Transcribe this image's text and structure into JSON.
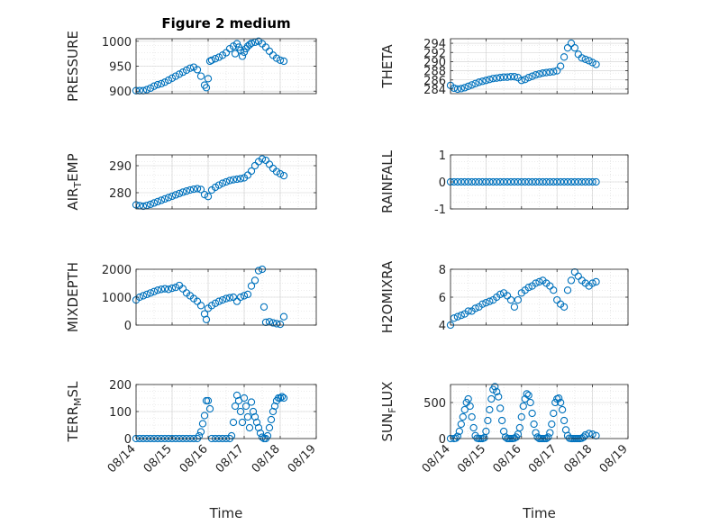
{
  "figure": {
    "title": "Figure 2 medium",
    "marker_color": "#0072BD",
    "x_tick_labels": [
      "08/14",
      "08/15",
      "08/16",
      "08/17",
      "08/18",
      "08/19"
    ]
  },
  "chart_data": [
    {
      "type": "scatter",
      "title": "Figure 2 medium",
      "ylabel": "PRESSURE",
      "xlabel": "",
      "xlim": [
        0,
        5
      ],
      "ylim": [
        895,
        1005
      ],
      "yticks": [
        900,
        950,
        1000
      ],
      "grid": true,
      "x_ticks_shown": false,
      "x": [
        0.0,
        0.1,
        0.2,
        0.3,
        0.4,
        0.5,
        0.6,
        0.7,
        0.8,
        0.9,
        1.0,
        1.1,
        1.2,
        1.3,
        1.4,
        1.5,
        1.6,
        1.7,
        1.8,
        1.9,
        1.95,
        2.0,
        2.05,
        2.1,
        2.2,
        2.3,
        2.4,
        2.5,
        2.6,
        2.7,
        2.75,
        2.8,
        2.85,
        2.9,
        2.95,
        3.0,
        3.05,
        3.1,
        3.15,
        3.2,
        3.3,
        3.4,
        3.5,
        3.6,
        3.7,
        3.8,
        3.9,
        4.0,
        4.1
      ],
      "y": [
        901,
        901,
        901,
        903,
        906,
        910,
        913,
        915,
        918,
        922,
        926,
        930,
        934,
        938,
        942,
        946,
        948,
        943,
        930,
        912,
        907,
        925,
        960,
        962,
        965,
        968,
        972,
        977,
        985,
        990,
        975,
        995,
        988,
        982,
        970,
        978,
        985,
        990,
        993,
        996,
        998,
        1000,
        995,
        988,
        980,
        972,
        966,
        962,
        960
      ]
    },
    {
      "type": "scatter",
      "title": "",
      "ylabel": "THETA",
      "xlabel": "",
      "xlim": [
        0,
        5
      ],
      "ylim": [
        283,
        295
      ],
      "yticks": [
        284,
        286,
        288,
        290,
        292,
        294
      ],
      "grid": true,
      "x_ticks_shown": false,
      "x": [
        0.0,
        0.1,
        0.2,
        0.3,
        0.4,
        0.5,
        0.6,
        0.7,
        0.8,
        0.9,
        1.0,
        1.1,
        1.2,
        1.3,
        1.4,
        1.5,
        1.6,
        1.7,
        1.8,
        1.9,
        2.0,
        2.1,
        2.2,
        2.3,
        2.4,
        2.5,
        2.6,
        2.7,
        2.8,
        2.9,
        3.0,
        3.1,
        3.2,
        3.3,
        3.4,
        3.5,
        3.6,
        3.7,
        3.8,
        3.9,
        4.0,
        4.1
      ],
      "y": [
        284.8,
        284.2,
        284.0,
        284.1,
        284.3,
        284.6,
        284.9,
        285.2,
        285.5,
        285.7,
        285.9,
        286.1,
        286.3,
        286.4,
        286.5,
        286.6,
        286.6,
        286.7,
        286.7,
        286.5,
        285.9,
        286.1,
        286.5,
        286.8,
        287.1,
        287.3,
        287.5,
        287.6,
        287.7,
        287.8,
        288.0,
        289.0,
        291.0,
        293.0,
        294.0,
        293.0,
        291.6,
        290.8,
        290.5,
        290.2,
        289.8,
        289.4
      ]
    },
    {
      "type": "scatter",
      "title": "",
      "ylabel": "AIR_TEMP",
      "xlabel": "",
      "xlim": [
        0,
        5
      ],
      "ylim": [
        274,
        294
      ],
      "yticks": [
        280,
        290
      ],
      "grid": true,
      "x_ticks_shown": false,
      "x": [
        0.0,
        0.1,
        0.2,
        0.3,
        0.4,
        0.5,
        0.6,
        0.7,
        0.8,
        0.9,
        1.0,
        1.1,
        1.2,
        1.3,
        1.4,
        1.5,
        1.6,
        1.7,
        1.8,
        1.9,
        2.0,
        2.1,
        2.2,
        2.3,
        2.4,
        2.5,
        2.6,
        2.7,
        2.8,
        2.9,
        3.0,
        3.1,
        3.2,
        3.3,
        3.4,
        3.5,
        3.6,
        3.7,
        3.8,
        3.9,
        4.0,
        4.1
      ],
      "y": [
        275.5,
        275.2,
        275.0,
        275.3,
        275.7,
        276.2,
        276.7,
        277.2,
        277.7,
        278.2,
        278.7,
        279.2,
        279.7,
        280.2,
        280.6,
        281.0,
        281.3,
        281.5,
        281.2,
        279.3,
        278.6,
        281.0,
        282.0,
        282.8,
        283.5,
        284.0,
        284.5,
        284.8,
        285.0,
        285.2,
        285.5,
        286.5,
        288.0,
        290.0,
        291.5,
        292.5,
        292.0,
        290.5,
        289.0,
        287.8,
        287.0,
        286.3
      ]
    },
    {
      "type": "scatter",
      "title": "",
      "ylabel": "RAINFALL",
      "xlabel": "",
      "xlim": [
        0,
        5
      ],
      "ylim": [
        -1,
        1
      ],
      "yticks": [
        -1,
        0,
        1
      ],
      "grid": true,
      "x_ticks_shown": false,
      "x": [
        0.0,
        0.1,
        0.2,
        0.3,
        0.4,
        0.5,
        0.6,
        0.7,
        0.8,
        0.9,
        1.0,
        1.1,
        1.2,
        1.3,
        1.4,
        1.5,
        1.6,
        1.7,
        1.8,
        1.9,
        2.0,
        2.1,
        2.2,
        2.3,
        2.4,
        2.5,
        2.6,
        2.7,
        2.8,
        2.9,
        3.0,
        3.1,
        3.2,
        3.3,
        3.4,
        3.5,
        3.6,
        3.7,
        3.8,
        3.9,
        4.0,
        4.1
      ],
      "y": [
        0,
        0,
        0,
        0,
        0,
        0,
        0,
        0,
        0,
        0,
        0,
        0,
        0,
        0,
        0,
        0,
        0,
        0,
        0,
        0,
        0,
        0,
        0,
        0,
        0,
        0,
        0,
        0,
        0,
        0,
        0,
        0,
        0,
        0,
        0,
        0,
        0,
        0,
        0,
        0,
        0,
        0
      ]
    },
    {
      "type": "scatter",
      "title": "",
      "ylabel": "MIXDEPTH",
      "xlabel": "",
      "xlim": [
        0,
        5
      ],
      "ylim": [
        0,
        2000
      ],
      "yticks": [
        0,
        1000,
        2000
      ],
      "grid": true,
      "x_ticks_shown": false,
      "x": [
        0.0,
        0.1,
        0.2,
        0.3,
        0.4,
        0.5,
        0.6,
        0.7,
        0.8,
        0.9,
        1.0,
        1.1,
        1.2,
        1.3,
        1.4,
        1.5,
        1.6,
        1.7,
        1.8,
        1.9,
        1.95,
        2.0,
        2.1,
        2.2,
        2.3,
        2.4,
        2.5,
        2.6,
        2.7,
        2.8,
        2.9,
        3.0,
        3.1,
        3.2,
        3.3,
        3.4,
        3.5,
        3.55,
        3.6,
        3.7,
        3.8,
        3.9,
        4.0,
        4.1
      ],
      "y": [
        900,
        1000,
        1050,
        1100,
        1150,
        1200,
        1250,
        1280,
        1300,
        1280,
        1320,
        1350,
        1420,
        1300,
        1150,
        1050,
        950,
        850,
        700,
        400,
        200,
        600,
        700,
        780,
        850,
        900,
        950,
        980,
        1000,
        850,
        1000,
        1050,
        1100,
        1400,
        1600,
        1950,
        2000,
        650,
        100,
        120,
        80,
        50,
        30,
        300
      ]
    },
    {
      "type": "scatter",
      "title": "",
      "ylabel": "H2OMIXRA",
      "xlabel": "",
      "xlim": [
        0,
        5
      ],
      "ylim": [
        4,
        8
      ],
      "yticks": [
        4,
        6,
        8
      ],
      "grid": true,
      "x_ticks_shown": false,
      "x": [
        0.0,
        0.1,
        0.2,
        0.3,
        0.4,
        0.5,
        0.6,
        0.7,
        0.8,
        0.9,
        1.0,
        1.1,
        1.2,
        1.3,
        1.4,
        1.5,
        1.6,
        1.7,
        1.8,
        1.9,
        2.0,
        2.1,
        2.2,
        2.3,
        2.4,
        2.5,
        2.6,
        2.7,
        2.8,
        2.9,
        3.0,
        3.1,
        3.2,
        3.3,
        3.4,
        3.5,
        3.6,
        3.7,
        3.8,
        3.9,
        4.0,
        4.1
      ],
      "y": [
        4.0,
        4.5,
        4.6,
        4.7,
        4.8,
        5.0,
        5.0,
        5.2,
        5.3,
        5.5,
        5.6,
        5.7,
        5.8,
        6.0,
        6.2,
        6.3,
        6.1,
        5.8,
        5.3,
        5.8,
        6.3,
        6.5,
        6.7,
        6.8,
        7.0,
        7.1,
        7.2,
        7.0,
        6.8,
        6.5,
        5.8,
        5.5,
        5.3,
        6.5,
        7.2,
        7.8,
        7.5,
        7.2,
        7.0,
        6.8,
        7.0,
        7.1
      ]
    },
    {
      "type": "scatter",
      "title": "",
      "ylabel": "TERR_MSL",
      "xlabel": "Time",
      "xlim": [
        0,
        5
      ],
      "ylim": [
        0,
        200
      ],
      "yticks": [
        0,
        100,
        200
      ],
      "grid": true,
      "x_ticks_shown": true,
      "x": [
        0.0,
        0.1,
        0.2,
        0.3,
        0.4,
        0.5,
        0.6,
        0.7,
        0.8,
        0.9,
        1.0,
        1.1,
        1.2,
        1.3,
        1.4,
        1.5,
        1.6,
        1.7,
        1.75,
        1.8,
        1.85,
        1.9,
        1.95,
        2.0,
        2.05,
        2.1,
        2.2,
        2.3,
        2.4,
        2.5,
        2.6,
        2.65,
        2.7,
        2.75,
        2.8,
        2.85,
        2.9,
        2.95,
        3.0,
        3.05,
        3.1,
        3.15,
        3.2,
        3.25,
        3.3,
        3.35,
        3.4,
        3.45,
        3.5,
        3.55,
        3.6,
        3.65,
        3.7,
        3.75,
        3.8,
        3.85,
        3.9,
        3.95,
        4.0,
        4.05,
        4.1
      ],
      "y": [
        0,
        0,
        0,
        0,
        0,
        0,
        0,
        0,
        0,
        0,
        0,
        0,
        0,
        0,
        0,
        0,
        0,
        0,
        10,
        25,
        55,
        85,
        140,
        140,
        110,
        0,
        0,
        0,
        0,
        0,
        0,
        10,
        60,
        120,
        160,
        140,
        100,
        60,
        150,
        120,
        80,
        40,
        135,
        100,
        80,
        60,
        40,
        20,
        5,
        0,
        0,
        10,
        40,
        70,
        100,
        120,
        140,
        150,
        150,
        155,
        150
      ]
    },
    {
      "type": "scatter",
      "title": "",
      "ylabel": "SUN_FLUX",
      "xlabel": "Time",
      "xlim": [
        0,
        5
      ],
      "ylim": [
        0,
        750
      ],
      "yticks": [
        0,
        500
      ],
      "grid": true,
      "x_ticks_shown": true,
      "x": [
        0.0,
        0.1,
        0.15,
        0.2,
        0.25,
        0.3,
        0.35,
        0.4,
        0.45,
        0.5,
        0.55,
        0.6,
        0.65,
        0.7,
        0.75,
        0.8,
        0.85,
        0.9,
        0.95,
        1.0,
        1.05,
        1.1,
        1.15,
        1.2,
        1.25,
        1.3,
        1.35,
        1.4,
        1.45,
        1.5,
        1.55,
        1.6,
        1.65,
        1.7,
        1.75,
        1.8,
        1.85,
        1.9,
        1.95,
        2.0,
        2.05,
        2.1,
        2.15,
        2.2,
        2.25,
        2.3,
        2.35,
        2.4,
        2.45,
        2.5,
        2.55,
        2.6,
        2.65,
        2.7,
        2.75,
        2.8,
        2.85,
        2.9,
        2.95,
        3.0,
        3.05,
        3.1,
        3.15,
        3.2,
        3.25,
        3.3,
        3.35,
        3.4,
        3.45,
        3.5,
        3.55,
        3.6,
        3.65,
        3.7,
        3.75,
        3.8,
        3.9,
        4.0,
        4.1
      ],
      "y": [
        0,
        0,
        5,
        30,
        100,
        200,
        300,
        400,
        500,
        550,
        450,
        300,
        150,
        40,
        5,
        0,
        0,
        0,
        10,
        100,
        250,
        400,
        550,
        680,
        720,
        650,
        580,
        420,
        250,
        100,
        20,
        0,
        0,
        0,
        0,
        5,
        20,
        60,
        150,
        300,
        450,
        550,
        620,
        600,
        500,
        350,
        200,
        80,
        20,
        0,
        0,
        0,
        0,
        0,
        20,
        80,
        200,
        350,
        500,
        550,
        560,
        500,
        400,
        250,
        120,
        40,
        5,
        0,
        0,
        0,
        0,
        0,
        0,
        5,
        20,
        50,
        70,
        60,
        40
      ]
    }
  ]
}
